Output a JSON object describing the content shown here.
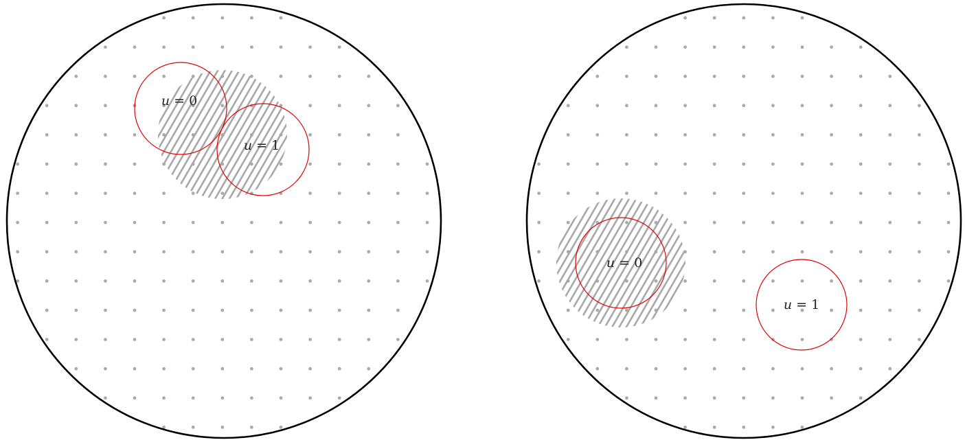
{
  "panels": [
    {
      "id": "left",
      "labels": {
        "u0": {
          "var": "u",
          "eq": " = 0"
        },
        "u1": {
          "var": "u",
          "eq": " = 1"
        }
      }
    },
    {
      "id": "right",
      "labels": {
        "u0": {
          "var": "u",
          "eq": " = 0"
        },
        "u1": {
          "var": "u",
          "eq": " = 1"
        }
      }
    }
  ],
  "colors": {
    "outline": "#000000",
    "grid_dot": "#aaaaaa",
    "hatch": "#a6a6a6",
    "marker_circle": "#e00000",
    "label": "#222222"
  }
}
